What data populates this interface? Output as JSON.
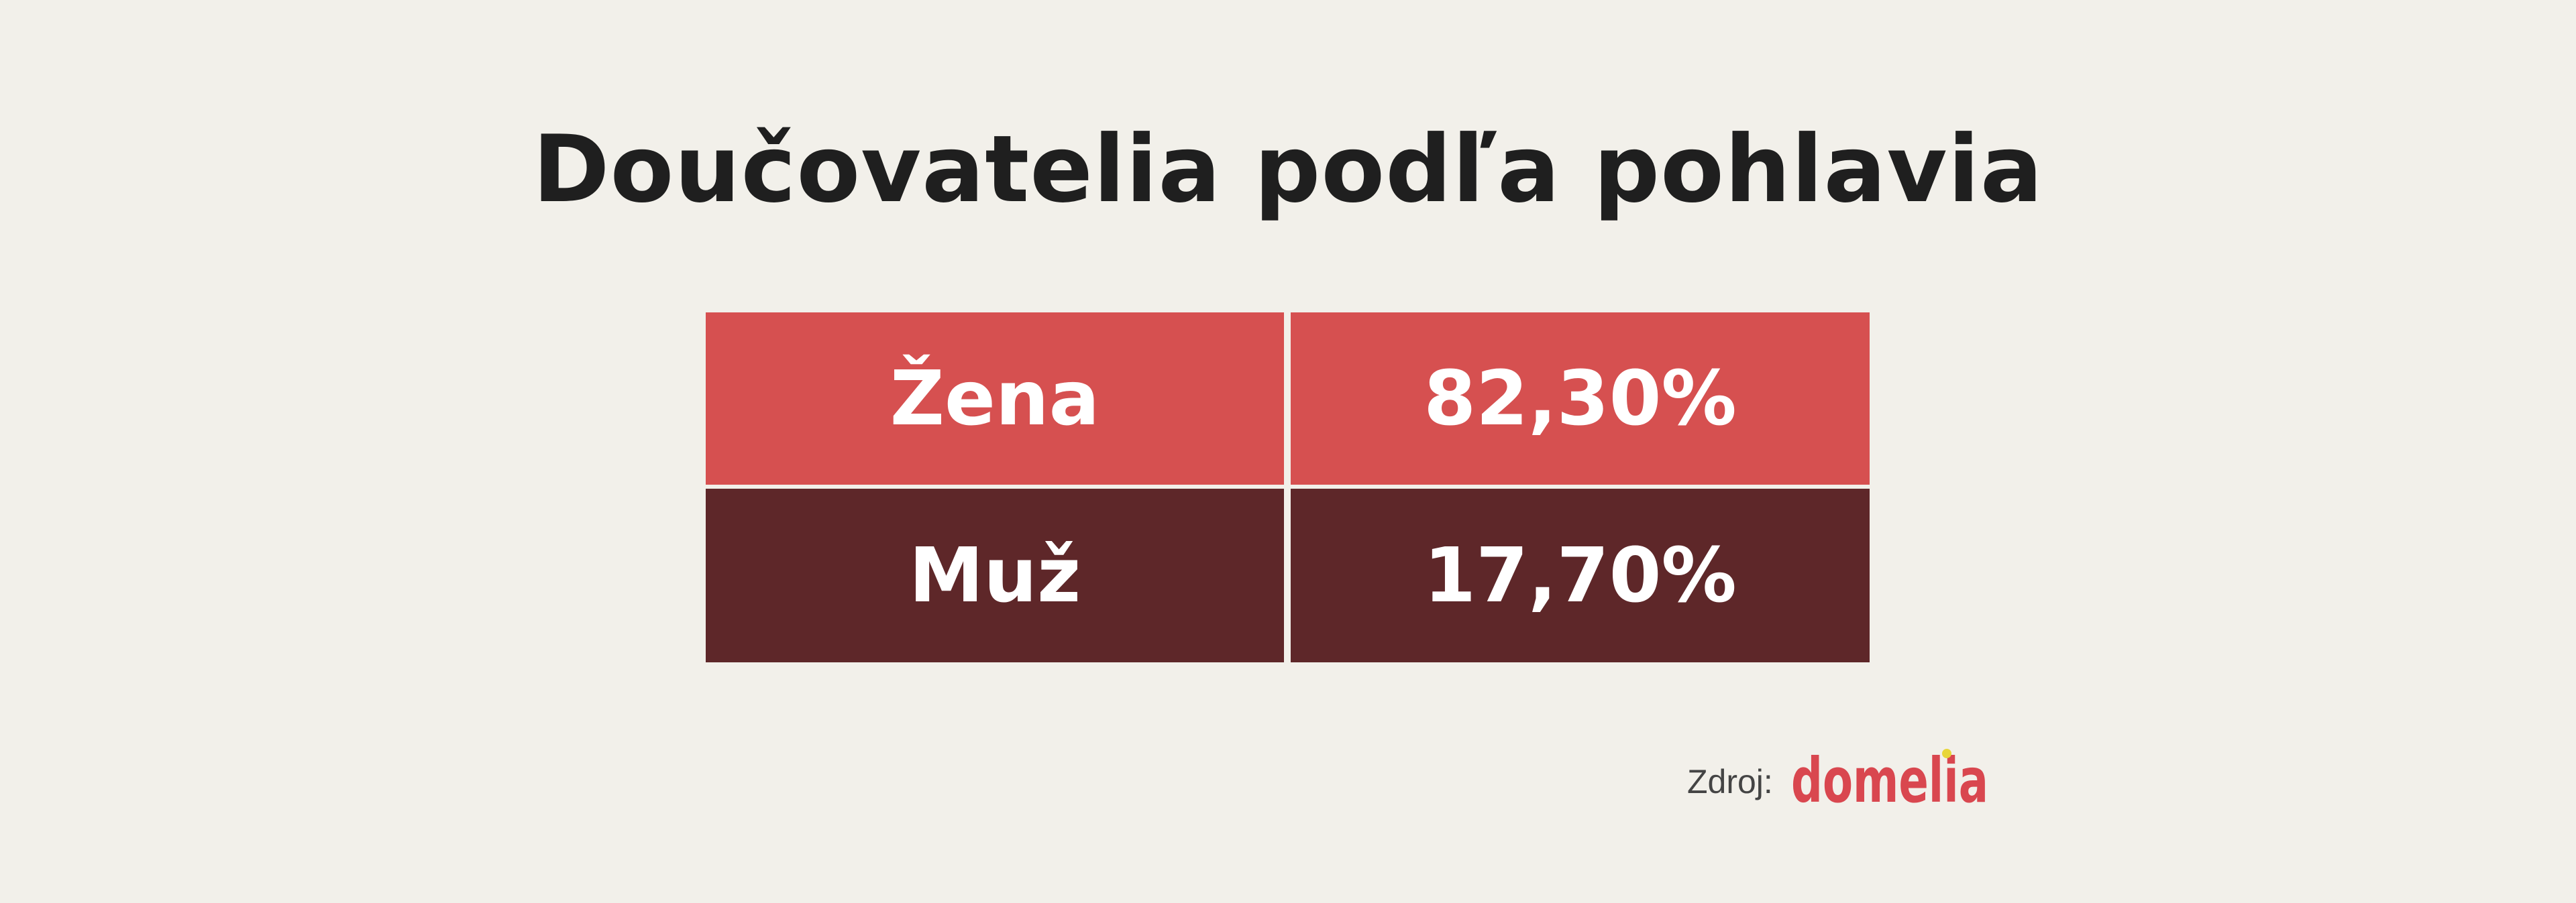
{
  "chart_data": {
    "type": "table",
    "title": "Doučovatelia podľa pohlavia",
    "rows": [
      {
        "label": "Žena",
        "value_text": "82,30%",
        "value": 82.3,
        "color": "#d65050"
      },
      {
        "label": "Muž",
        "value_text": "17,70%",
        "value": 17.7,
        "color": "#5e2729"
      }
    ]
  },
  "source": {
    "label": "Zdroj:",
    "logo_text": "domelia",
    "logo_color": "#d9474f",
    "logo_dot_color": "#e8d63a"
  }
}
